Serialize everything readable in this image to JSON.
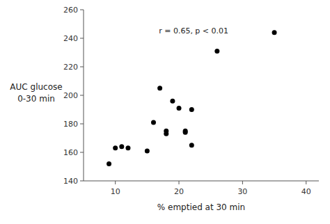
{
  "chart_data": {
    "type": "scatter",
    "x": [
      9,
      10,
      11,
      12,
      15,
      16,
      17,
      18,
      18,
      19,
      20,
      21,
      21,
      22,
      22,
      26,
      35
    ],
    "values": [
      152,
      163,
      164,
      163,
      161,
      181,
      205,
      175,
      173,
      196,
      191,
      175,
      174,
      190,
      165,
      231,
      244
    ],
    "xlabel": "% emptied at 30 min",
    "ylabel": [
      "AUC glucose",
      "0-30 min"
    ],
    "annotation": "r = 0.65, p < 0.01",
    "xlim": [
      5,
      42
    ],
    "ylim": [
      140,
      260
    ],
    "xticks": [
      10,
      20,
      30,
      40
    ],
    "yticks": [
      140,
      160,
      180,
      200,
      220,
      240,
      260
    ],
    "color": "black"
  }
}
